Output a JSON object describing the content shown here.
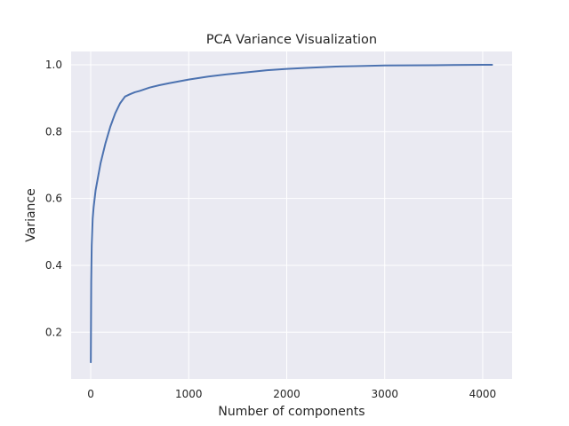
{
  "chart_data": {
    "type": "line",
    "title": "PCA Variance Visualization",
    "xlabel": "Number of components",
    "ylabel": "Variance",
    "xlim": [
      -200,
      4300
    ],
    "ylim": [
      0.06,
      1.04
    ],
    "xticks": [
      0,
      1000,
      2000,
      3000,
      4000
    ],
    "xtick_labels": [
      "0",
      "1000",
      "2000",
      "3000",
      "4000"
    ],
    "yticks": [
      0.2,
      0.4,
      0.6,
      0.8,
      1.0
    ],
    "ytick_labels": [
      "0.2",
      "0.4",
      "0.6",
      "0.8",
      "1.0"
    ],
    "grid": true,
    "background_color": "#eaeaf2",
    "grid_color": "#ffffff",
    "line_color": "#4c72b0",
    "series": [
      {
        "x": [
          1,
          5,
          10,
          20,
          30,
          50,
          75,
          100,
          150,
          200,
          250,
          300,
          350,
          400,
          450,
          500,
          600,
          700,
          800,
          1000,
          1200,
          1400,
          1600,
          1800,
          2000,
          2200,
          2500,
          2800,
          3000,
          3500,
          4000,
          4096
        ],
        "values": [
          0.11,
          0.35,
          0.46,
          0.54,
          0.575,
          0.625,
          0.665,
          0.705,
          0.765,
          0.815,
          0.855,
          0.885,
          0.905,
          0.912,
          0.918,
          0.922,
          0.932,
          0.939,
          0.945,
          0.956,
          0.965,
          0.972,
          0.978,
          0.984,
          0.988,
          0.991,
          0.995,
          0.997,
          0.998,
          0.999,
          1.0,
          1.0
        ]
      }
    ]
  }
}
